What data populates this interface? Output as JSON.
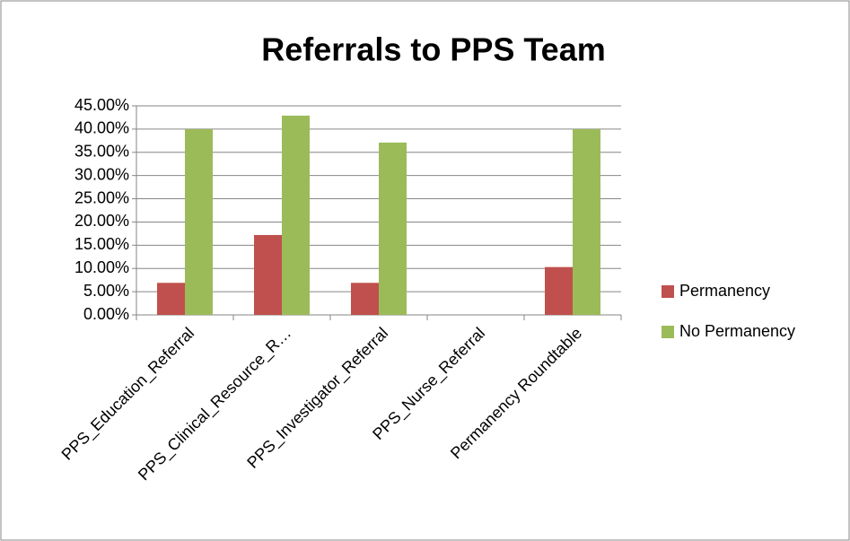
{
  "chart_data": {
    "type": "bar",
    "title": "Referrals to PPS Team",
    "categories": [
      "PPS_Education_Referral",
      "PPS_Clinical_Resource_R…",
      "PPS_Investigator_Referral",
      "PPS_Nurse_Referral",
      "Permanency Roundtable"
    ],
    "series": [
      {
        "name": "Permanency",
        "color": "#c0504d",
        "values": [
          6.9,
          17.2,
          6.9,
          0,
          10.3
        ]
      },
      {
        "name": "No Permanency",
        "color": "#9bbb59",
        "values": [
          40,
          42.9,
          37.1,
          0,
          40
        ]
      }
    ],
    "ylim": [
      0,
      45
    ],
    "yticks": [
      {
        "value": 0,
        "label": "0.00%"
      },
      {
        "value": 5,
        "label": "5.00%"
      },
      {
        "value": 10,
        "label": "10.00%"
      },
      {
        "value": 15,
        "label": "15.00%"
      },
      {
        "value": 20,
        "label": "20.00%"
      },
      {
        "value": 25,
        "label": "25.00%"
      },
      {
        "value": 30,
        "label": "30.00%"
      },
      {
        "value": 35,
        "label": "35.00%"
      },
      {
        "value": 40,
        "label": "40.00%"
      },
      {
        "value": 45,
        "label": "45.00%"
      }
    ],
    "grid": true,
    "legend": "right"
  }
}
